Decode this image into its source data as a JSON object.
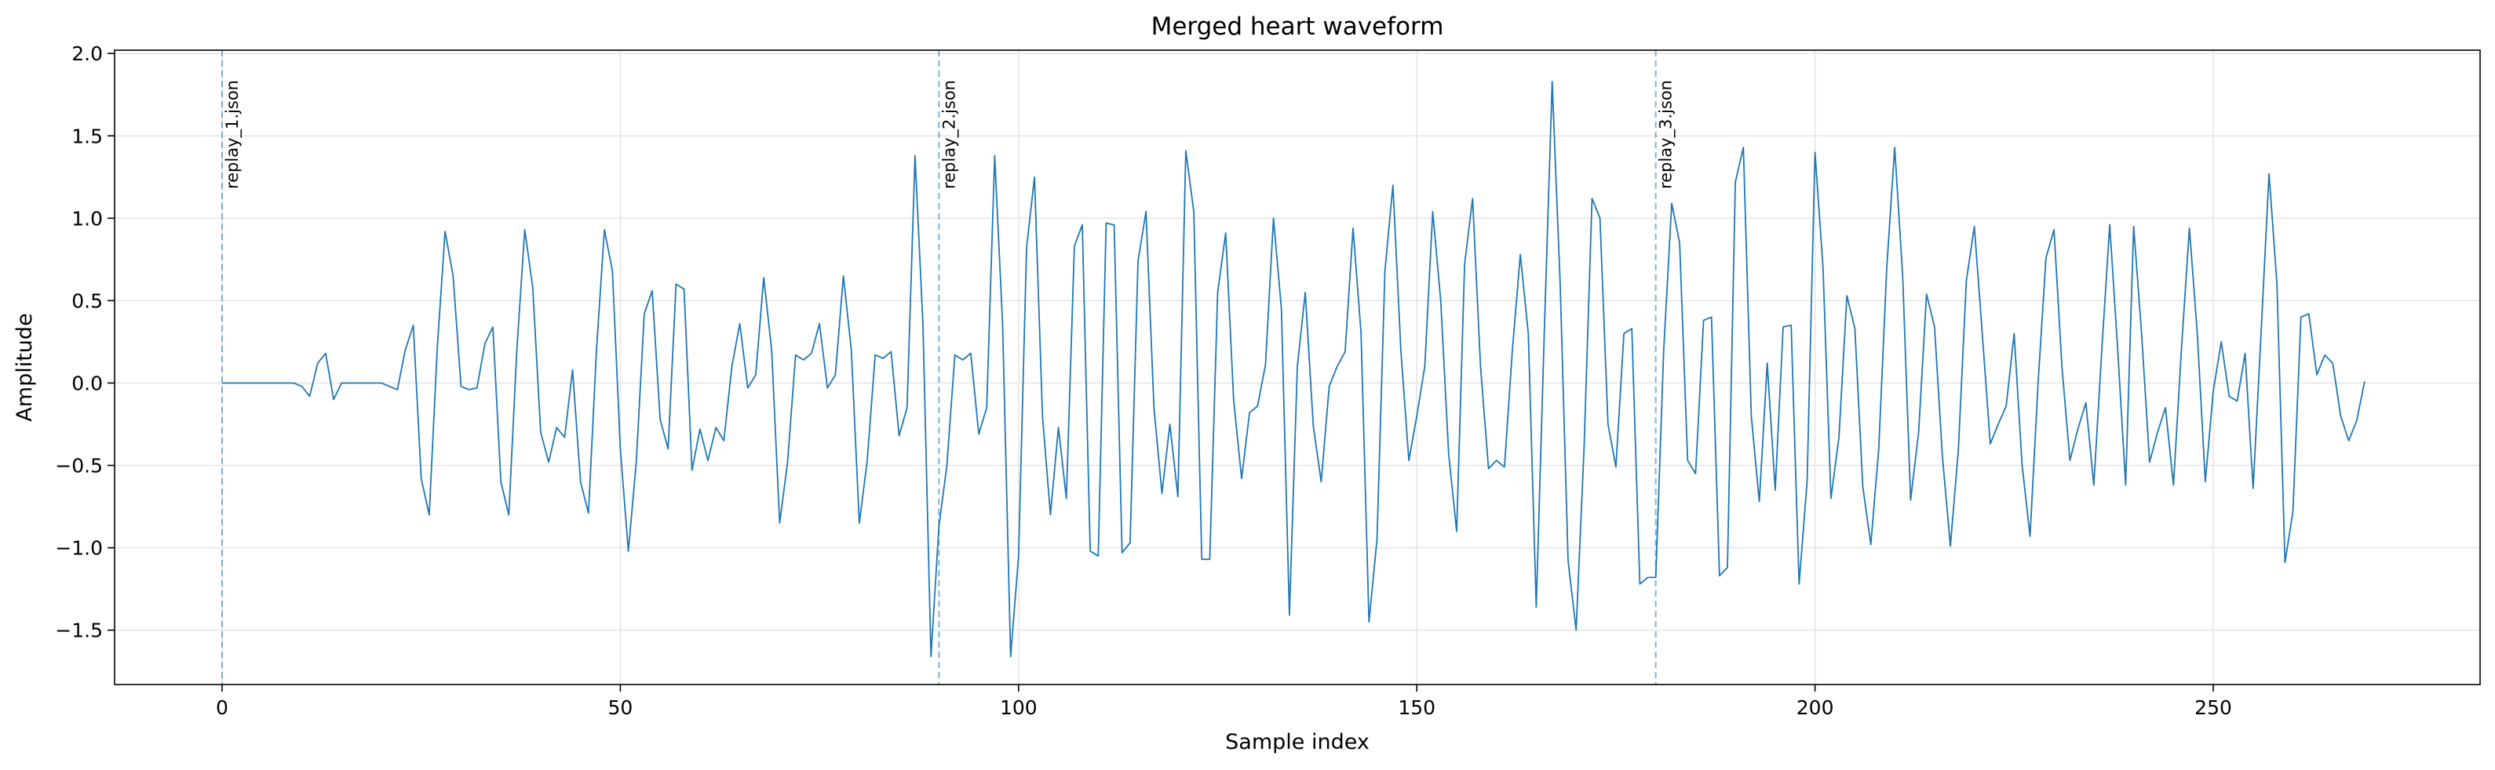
{
  "chart_data": {
    "type": "line",
    "title": "Merged heart waveform",
    "xlabel": "Sample index",
    "ylabel": "Amplitude",
    "xlim": [
      -13.5,
      283.5
    ],
    "ylim": [
      -1.83,
      2.02
    ],
    "xticks": [
      0,
      50,
      100,
      150,
      200,
      250
    ],
    "yticks": [
      -1.5,
      -1.0,
      -0.5,
      0.0,
      0.5,
      1.0,
      1.5,
      2.0
    ],
    "xtick_labels": [
      "0",
      "50",
      "100",
      "150",
      "200",
      "250"
    ],
    "ytick_labels": [
      "−1.5",
      "−1.0",
      "−0.5",
      "0.0",
      "0.5",
      "1.0",
      "1.5",
      "2.0"
    ],
    "grid": true,
    "colors": {
      "line": "#1f77b4",
      "marker": "#1f77b4",
      "grid": "#e6e6e6"
    },
    "markers": [
      {
        "x": 0,
        "label": "replay_1.json"
      },
      {
        "x": 90,
        "label": "replay_2.json"
      },
      {
        "x": 180,
        "label": "replay_3.json"
      }
    ],
    "series": [
      {
        "values": [
          0,
          0,
          0,
          0,
          0,
          0,
          0,
          0,
          0,
          0,
          -0.02,
          -0.08,
          0.12,
          0.18,
          -0.1,
          0,
          0,
          0,
          0,
          0,
          0,
          -0.02,
          -0.04,
          0.2,
          0.35,
          -0.58,
          -0.8,
          0.2,
          0.92,
          0.65,
          -0.02,
          -0.04,
          -0.03,
          0.24,
          0.34,
          -0.6,
          -0.8,
          0.2,
          0.93,
          0.58,
          -0.3,
          -0.48,
          -0.27,
          -0.33,
          0.08,
          -0.6,
          -0.79,
          0.2,
          0.93,
          0.68,
          -0.4,
          -1.02,
          -0.48,
          0.42,
          0.56,
          -0.22,
          -0.4,
          0.6,
          0.57,
          -0.53,
          -0.28,
          -0.47,
          -0.27,
          -0.35,
          0.1,
          0.36,
          -0.03,
          0.05,
          0.64,
          0.2,
          -0.85,
          -0.48,
          0.17,
          0.14,
          0.18,
          0.36,
          -0.03,
          0.05,
          0.65,
          0.2,
          -0.85,
          -0.47,
          0.17,
          0.15,
          0.19,
          -0.32,
          -0.15,
          1.38,
          0.35,
          -1.66,
          -0.87,
          -0.5,
          0.17,
          0.14,
          0.18,
          -0.31,
          -0.15,
          1.38,
          0.35,
          -1.66,
          -1.05,
          0.82,
          1.25,
          -0.2,
          -0.8,
          -0.27,
          -0.7,
          0.83,
          0.96,
          -1.02,
          -1.05,
          0.97,
          0.96,
          -1.03,
          -0.97,
          0.74,
          1.04,
          -0.15,
          -0.67,
          -0.25,
          -0.69,
          1.41,
          1.04,
          -1.07,
          -1.07,
          0.55,
          0.91,
          -0.1,
          -0.58,
          -0.18,
          -0.14,
          0.11,
          1.0,
          0.45,
          -1.41,
          0.1,
          0.55,
          -0.26,
          -0.6,
          -0.02,
          0.1,
          0.19,
          0.94,
          0.3,
          -1.45,
          -0.95,
          0.68,
          1.2,
          0.2,
          -0.47,
          -0.2,
          0.1,
          1.04,
          0.5,
          -0.43,
          -0.9,
          0.72,
          1.12,
          0.1,
          -0.52,
          -0.47,
          -0.51,
          0.2,
          0.78,
          0.3,
          -1.36,
          0.3,
          1.83,
          0.6,
          -1.08,
          -1.5,
          -0.4,
          1.12,
          1.0,
          -0.25,
          -0.51,
          0.3,
          0.33,
          -1.22,
          -1.18,
          -1.18,
          0.2,
          1.09,
          0.85,
          -0.47,
          -0.55,
          0.38,
          0.4,
          -1.17,
          -1.12,
          1.22,
          1.43,
          -0.2,
          -0.72,
          0.12,
          -0.65,
          0.34,
          0.35,
          -1.22,
          -0.6,
          1.4,
          0.7,
          -0.7,
          -0.33,
          0.53,
          0.33,
          -0.63,
          -0.98,
          -0.4,
          0.7,
          1.43,
          0.65,
          -0.71,
          -0.3,
          0.54,
          0.34,
          -0.45,
          -0.99,
          -0.4,
          0.62,
          0.95,
          0.3,
          -0.37,
          -0.25,
          -0.14,
          0.3,
          -0.5,
          -0.93,
          0.0,
          0.76,
          0.93,
          0.1,
          -0.47,
          -0.28,
          -0.12,
          -0.62,
          0.2,
          0.96,
          0.2,
          -0.62,
          0.95,
          0.3,
          -0.48,
          -0.3,
          -0.15,
          -0.62,
          0.2,
          0.94,
          0.3,
          -0.6,
          -0.05,
          0.25,
          -0.08,
          -0.11,
          0.18,
          -0.64,
          0.3,
          1.27,
          0.6,
          -1.09,
          -0.78,
          0.4,
          0.42,
          0.05,
          0.17,
          0.12,
          -0.2,
          -0.35,
          -0.23,
          0.01
        ]
      }
    ]
  }
}
